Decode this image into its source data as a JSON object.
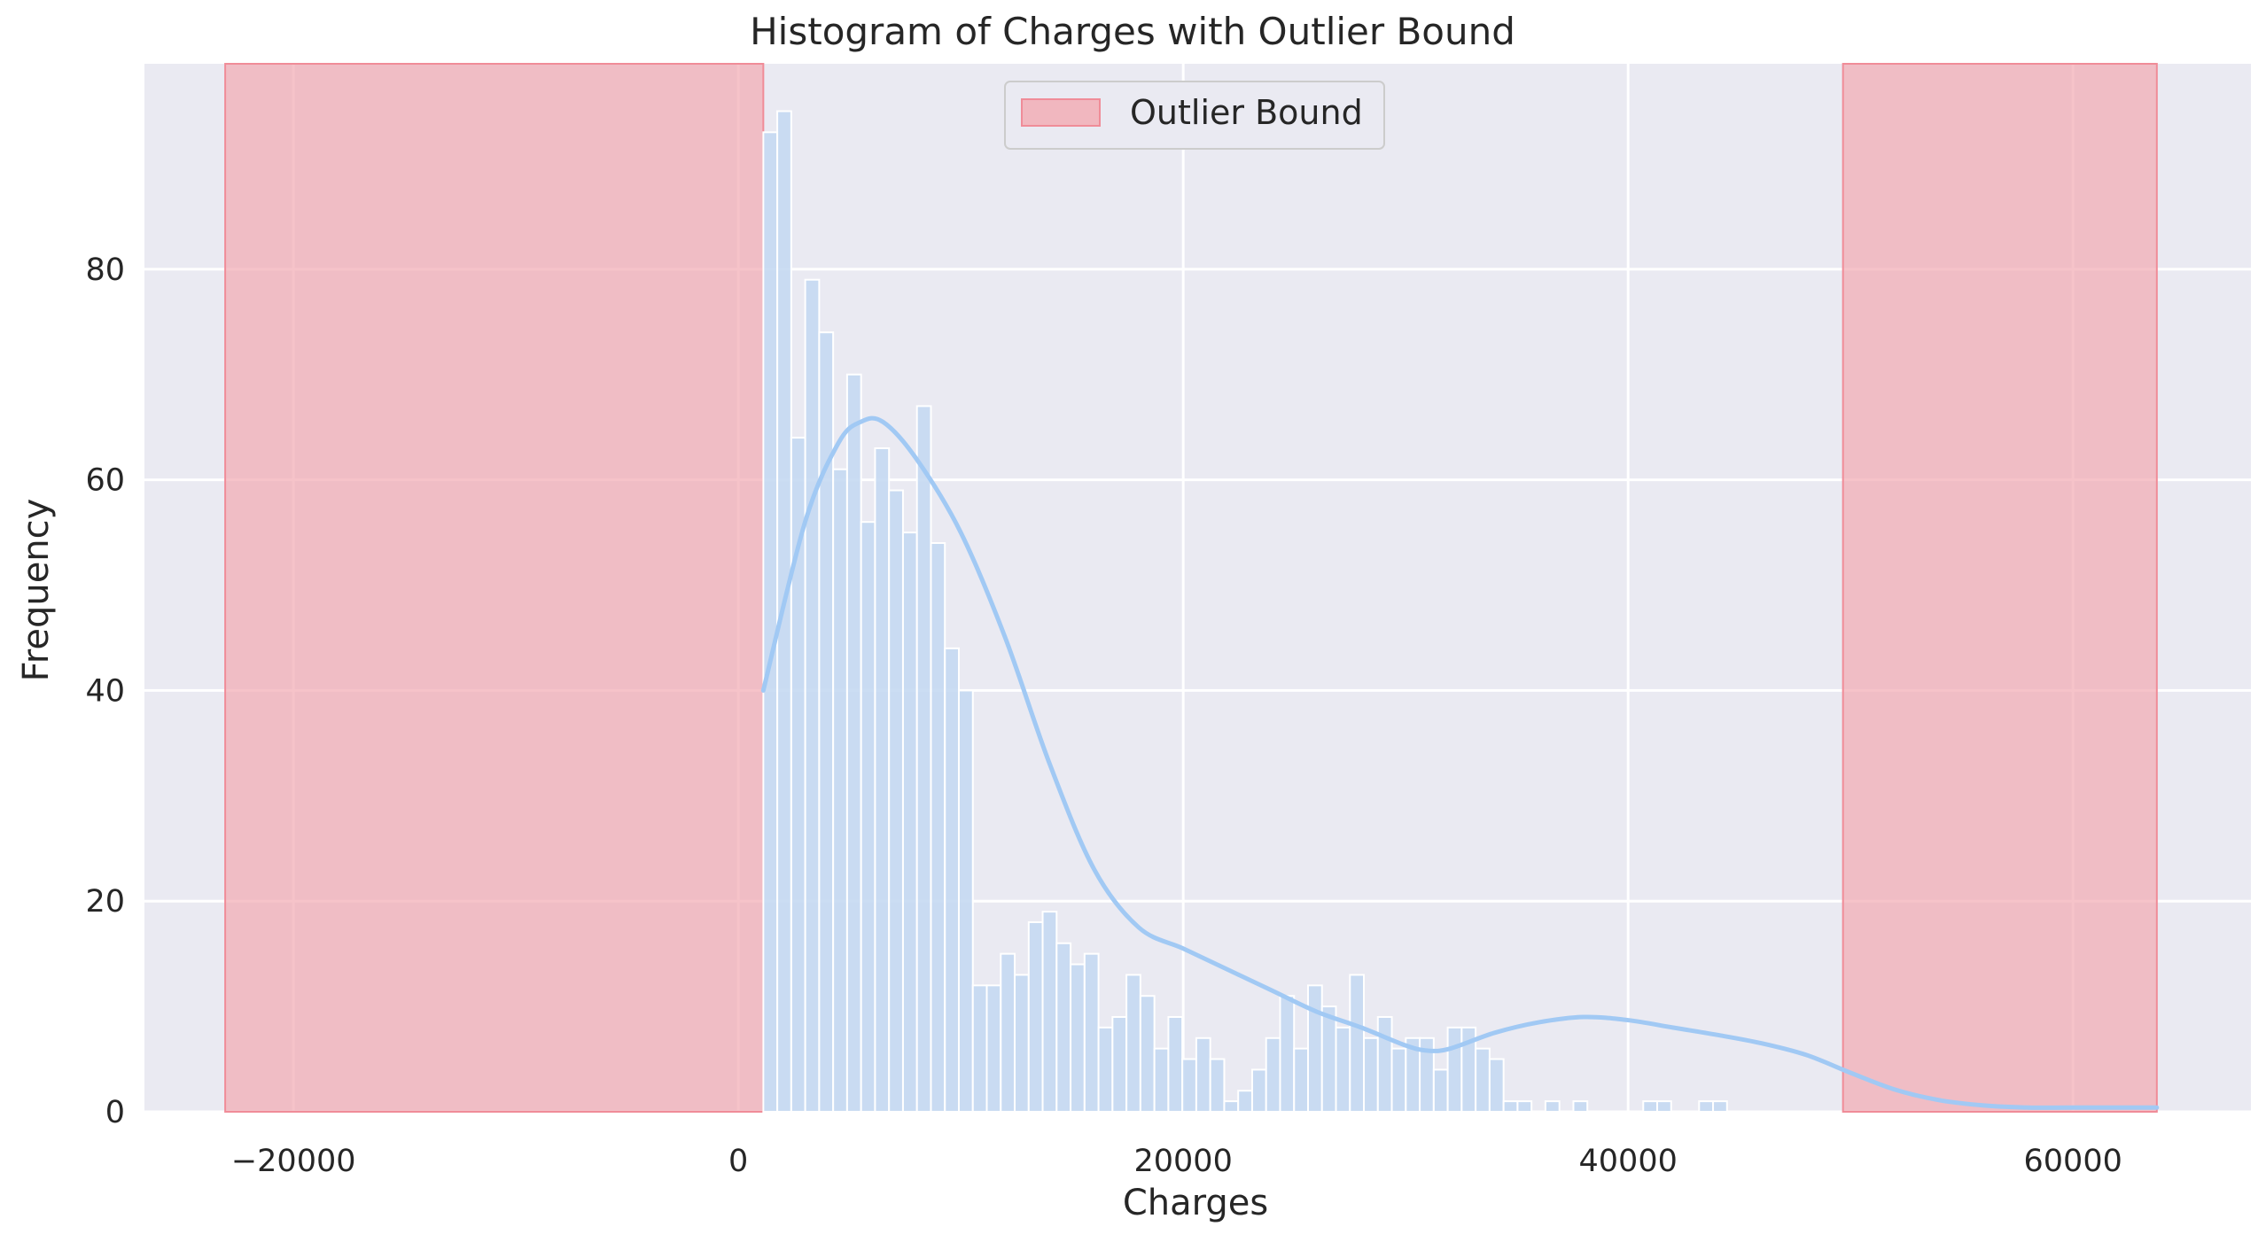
{
  "chart_data": {
    "type": "bar",
    "title": "Histogram of Charges with Outlier Bound",
    "xlabel": "Charges",
    "ylabel": "Frequency",
    "xlim": [
      -26700,
      68000
    ],
    "ylim": [
      0,
      99.5
    ],
    "x_ticks": [
      -20000,
      0,
      20000,
      40000,
      60000
    ],
    "x_tick_labels": [
      "−20000",
      "0",
      "20000",
      "40000",
      "60000"
    ],
    "y_ticks": [
      0,
      20,
      40,
      60,
      80
    ],
    "y_tick_labels": [
      "0",
      "20",
      "40",
      "60",
      "80"
    ],
    "grid": true,
    "legend_position": "top-center",
    "bins": {
      "start": 1122,
      "width": 627.9,
      "counts": [
        93,
        95,
        64,
        79,
        74,
        61,
        70,
        56,
        63,
        59,
        55,
        67,
        54,
        44,
        40,
        12,
        12,
        15,
        13,
        18,
        19,
        16,
        14,
        15,
        8,
        9,
        13,
        11,
        6,
        9,
        5,
        7,
        5,
        1,
        2,
        4,
        7,
        11,
        6,
        12,
        10,
        8,
        13,
        7,
        9,
        6,
        7,
        7,
        4,
        8,
        8,
        6,
        5,
        1,
        1,
        0,
        1,
        0,
        1,
        0,
        0,
        0,
        0,
        1,
        1,
        0,
        0,
        1,
        1
      ]
    },
    "kde": {
      "name": "",
      "x": [
        1122,
        3000,
        4500,
        5500,
        6500,
        8000,
        10000,
        12000,
        14000,
        16000,
        18000,
        20000,
        22000,
        24000,
        26000,
        28000,
        30000,
        31000,
        32000,
        34000,
        36000,
        38000,
        40000,
        42000,
        44000,
        46000,
        48000,
        50000,
        52000,
        54000,
        56000,
        58000,
        60000,
        63770
      ],
      "y": [
        40,
        56,
        63.5,
        65.5,
        65.5,
        62,
        55,
        45,
        33,
        23,
        17.5,
        15.5,
        13.5,
        11.5,
        9.5,
        8,
        6.3,
        5.8,
        6,
        7.5,
        8.5,
        9,
        8.7,
        8,
        7.3,
        6.5,
        5.4,
        3.7,
        2.1,
        1.1,
        0.6,
        0.4,
        0.4,
        0.4
      ]
    },
    "outlier_bound": {
      "label": "Outlier Bound",
      "regions": [
        [
          -23070,
          1122
        ],
        [
          49660,
          63770
        ]
      ]
    },
    "colors": {
      "background": "#eaeaf2",
      "grid": "#ffffff",
      "bar_fill": "#c5d9f2",
      "bar_edge": "#ffffff",
      "kde_line": "#a1c9f4",
      "outlier_fill": "#f2aab2",
      "outlier_edge": "#f08c98"
    }
  }
}
